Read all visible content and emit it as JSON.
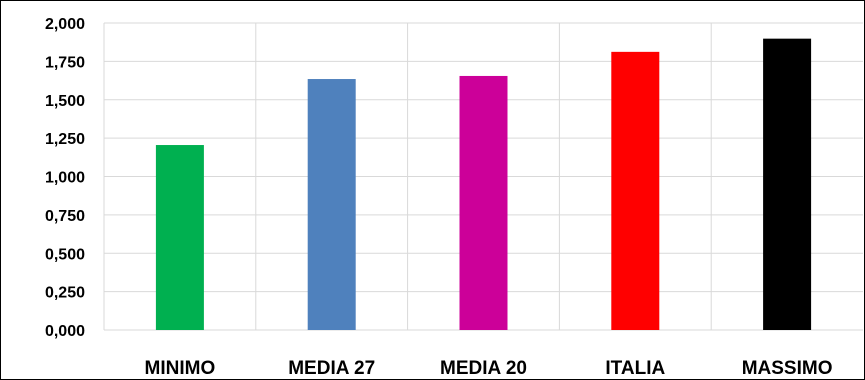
{
  "chart_data": {
    "type": "bar",
    "categories": [
      "MINIMO",
      "MEDIA 27",
      "MEDIA 20",
      "ITALIA",
      "MASSIMO"
    ],
    "values": [
      1.205,
      1.635,
      1.655,
      1.812,
      1.898
    ],
    "colors": [
      "#00b050",
      "#4f81bd",
      "#cc0099",
      "#ff0000",
      "#000000"
    ],
    "yticks": [
      "0,000",
      "0,250",
      "0,500",
      "0,750",
      "1,000",
      "1,250",
      "1,500",
      "1,750",
      "2,000"
    ],
    "ylim": [
      0,
      2
    ],
    "grid": true,
    "legend": "none",
    "title": "",
    "xlabel": "",
    "ylabel": ""
  }
}
